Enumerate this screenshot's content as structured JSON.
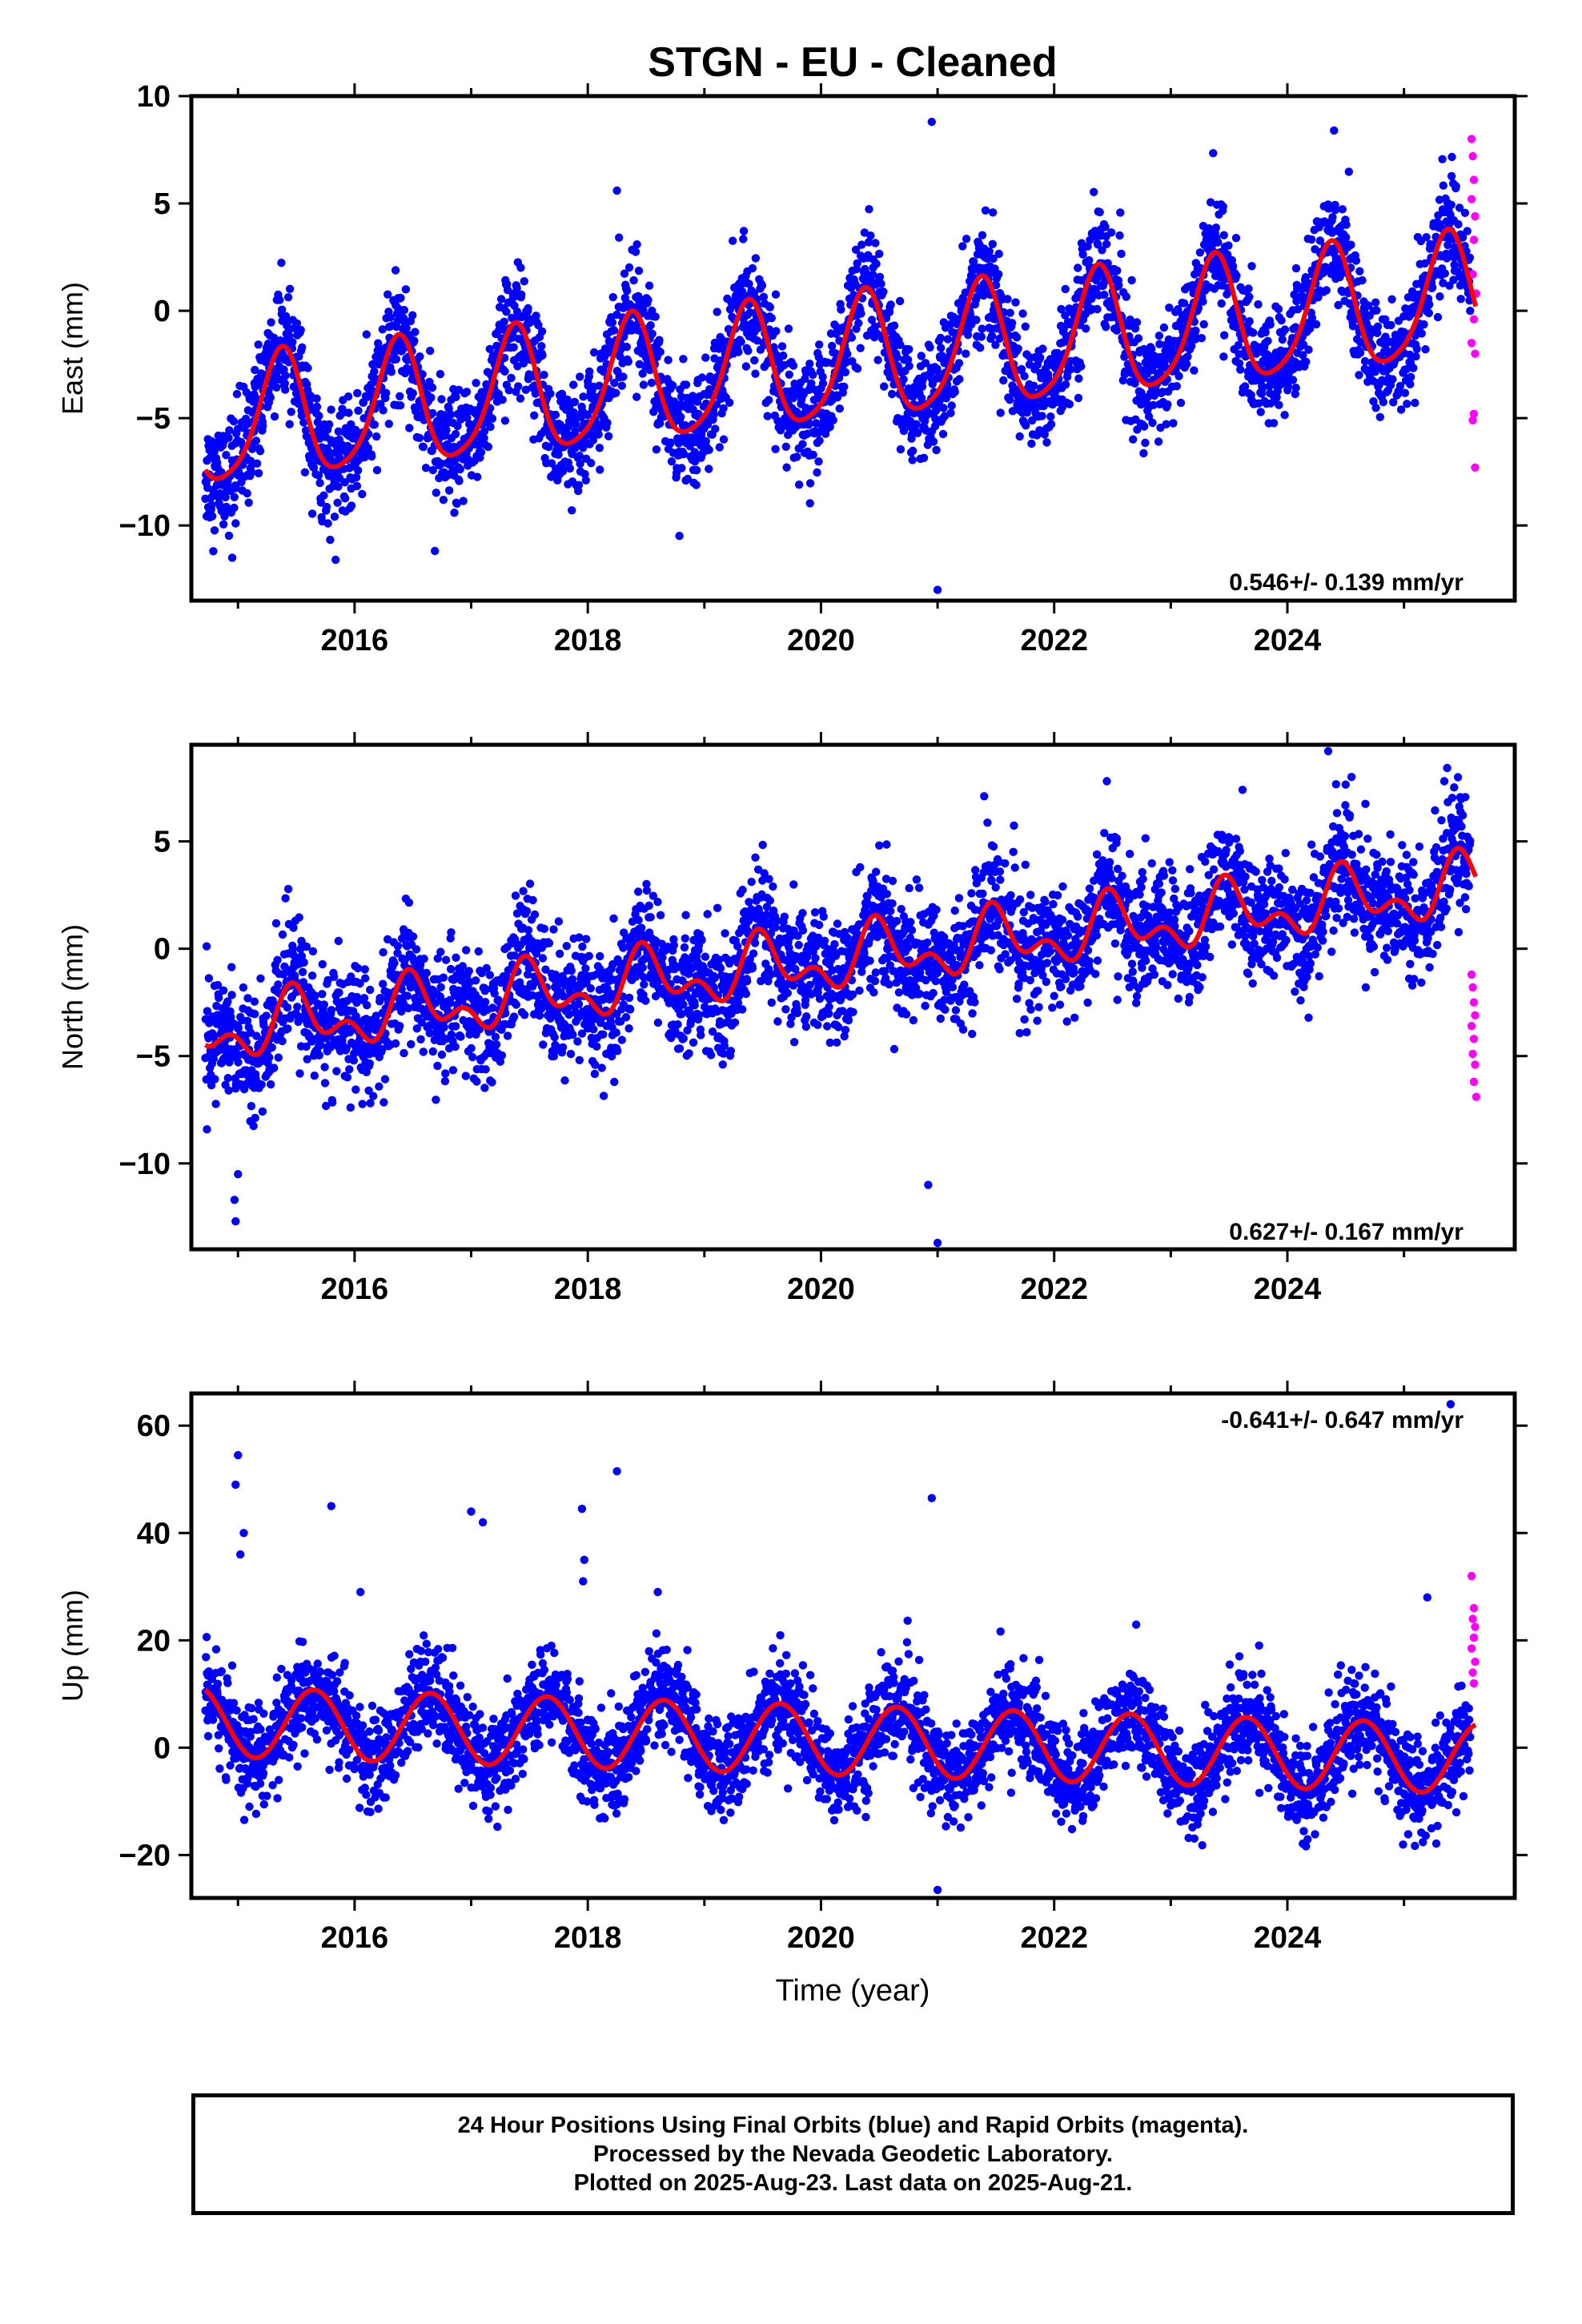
{
  "title": "STGN  - EU - Cleaned",
  "colors": {
    "final": "#0000ff",
    "rapid": "#ff00ff",
    "model": "#ff0000"
  },
  "x_axis": {
    "label": "Time (year)",
    "range": [
      2014.6,
      2025.95
    ],
    "ticks": [
      2016,
      2018,
      2020,
      2022,
      2024
    ]
  },
  "chart_data": [
    {
      "type": "scatter",
      "name": "east",
      "ylabel": "East (mm)",
      "ylim": [
        -13.5,
        10
      ],
      "yticks": [
        10,
        5,
        0,
        -5,
        -10
      ],
      "ytick_labels": [
        "10",
        "5",
        "0",
        "−5",
        "−10"
      ],
      "rate": "0.546+/- 0.139 mm/yr",
      "rate_position": "bottom-right",
      "model": {
        "offset": -2.5,
        "rate": 0.546,
        "t0": 2020,
        "amp1": 2.9,
        "phase1_peak": 2015.37,
        "amp2": 0.5,
        "phase2_peak": 2015.4,
        "noise": 1.3
      },
      "rapid_points": [
        [
          2025.58,
          8.0
        ],
        [
          2025.59,
          7.2
        ],
        [
          2025.6,
          6.1
        ],
        [
          2025.58,
          5.2
        ],
        [
          2025.61,
          4.4
        ],
        [
          2025.6,
          3.3
        ],
        [
          2025.59,
          1.7
        ],
        [
          2025.62,
          0.8
        ],
        [
          2025.6,
          -0.4
        ],
        [
          2025.58,
          -1.5
        ],
        [
          2025.61,
          -2.0
        ],
        [
          2025.6,
          -4.8
        ],
        [
          2025.59,
          -5.1
        ],
        [
          2025.61,
          -7.3
        ]
      ],
      "outliers": [
        [
          2014.95,
          -11.5
        ],
        [
          2014.98,
          -9.9
        ],
        [
          2018.25,
          5.6
        ],
        [
          2020.95,
          8.8
        ],
        [
          2021.0,
          -13.0
        ],
        [
          2024.4,
          8.4
        ]
      ]
    },
    {
      "type": "scatter",
      "name": "north",
      "ylabel": "North (mm)",
      "ylim": [
        -14,
        9.5
      ],
      "yticks": [
        5,
        0,
        -5,
        -10
      ],
      "ytick_labels": [
        "5",
        "0",
        "−5",
        "−10"
      ],
      "rate": "0.627+/- 0.167 mm/yr",
      "rate_position": "bottom-right",
      "model": {
        "offset": -0.6,
        "rate": 0.627,
        "t0": 2020,
        "amp1": 1.1,
        "phase1_peak": 2015.5,
        "amp2": 0.8,
        "phase2_peak": 2015.45,
        "noise": 1.4
      },
      "rapid_points": [
        [
          2025.58,
          -1.2
        ],
        [
          2025.59,
          -1.8
        ],
        [
          2025.6,
          -2.5
        ],
        [
          2025.61,
          -3.1
        ],
        [
          2025.58,
          -3.6
        ],
        [
          2025.6,
          -4.2
        ],
        [
          2025.59,
          -4.9
        ],
        [
          2025.61,
          -5.4
        ],
        [
          2025.6,
          -6.2
        ],
        [
          2025.62,
          -6.9
        ]
      ],
      "outliers": [
        [
          2014.98,
          -12.7
        ],
        [
          2014.97,
          -11.7
        ],
        [
          2015.0,
          -10.5
        ],
        [
          2020.92,
          -11.0
        ],
        [
          2021.0,
          -13.7
        ],
        [
          2024.35,
          9.2
        ],
        [
          2024.55,
          8.0
        ],
        [
          2021.4,
          7.1
        ]
      ]
    },
    {
      "type": "scatter",
      "name": "up",
      "ylabel": "Up (mm)",
      "ylim": [
        -28,
        66
      ],
      "yticks": [
        60,
        40,
        20,
        0,
        -20
      ],
      "ytick_labels": [
        "60",
        "40",
        "20",
        "0",
        "−20"
      ],
      "rate": "-0.641+/- 0.647 mm/yr",
      "rate_position": "top-right",
      "model": {
        "offset": 1.5,
        "rate": -0.641,
        "t0": 2020,
        "amp1": 6.5,
        "phase1_peak": 2015.65,
        "amp2": 0.0,
        "phase2_peak": 2015.65,
        "noise": 4.5
      },
      "rapid_points": [
        [
          2025.58,
          32.0
        ],
        [
          2025.6,
          26.0
        ],
        [
          2025.59,
          24.0
        ],
        [
          2025.61,
          22.5
        ],
        [
          2025.6,
          20.5
        ],
        [
          2025.58,
          18.5
        ],
        [
          2025.61,
          16.0
        ],
        [
          2025.59,
          14.0
        ],
        [
          2025.6,
          12.0
        ]
      ],
      "outliers": [
        [
          2015.0,
          54.5
        ],
        [
          2014.98,
          49.0
        ],
        [
          2015.05,
          40.0
        ],
        [
          2015.02,
          36.0
        ],
        [
          2015.8,
          45.0
        ],
        [
          2017.0,
          44.0
        ],
        [
          2017.1,
          42.0
        ],
        [
          2017.95,
          44.5
        ],
        [
          2017.97,
          35.0
        ],
        [
          2017.96,
          31.0
        ],
        [
          2018.25,
          51.5
        ],
        [
          2020.95,
          46.5
        ],
        [
          2021.0,
          -26.5
        ],
        [
          2016.05,
          29.0
        ],
        [
          2018.6,
          29.0
        ],
        [
          2025.4,
          64.0
        ],
        [
          2025.2,
          28.0
        ]
      ]
    }
  ],
  "footer": {
    "line1": "24 Hour Positions Using Final Orbits (blue) and Rapid Orbits (magenta).",
    "line2": "Processed by the Nevada Geodetic Laboratory.",
    "line3": "Plotted on 2025-Aug-23. Last data on 2025-Aug-21."
  }
}
